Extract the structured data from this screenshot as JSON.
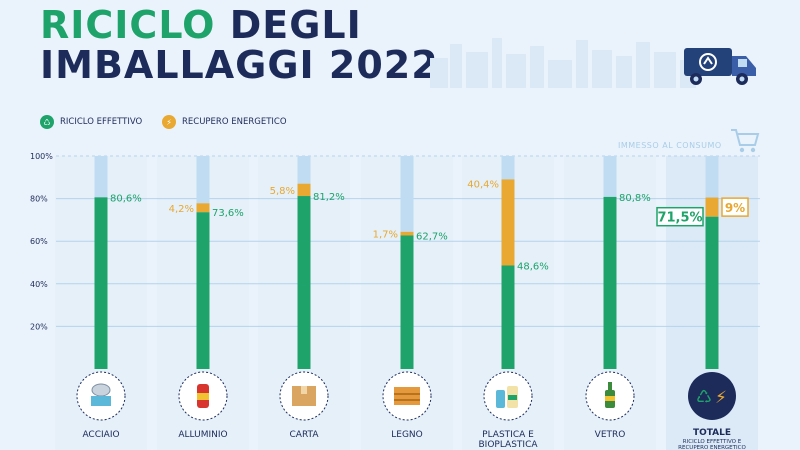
{
  "header": {
    "title_line1_a": "RICICLO",
    "title_line1_b": "DEGLI",
    "title_line2": "IMBALLAGGI 2022"
  },
  "legend": {
    "recycle_label": "RICICLO EFFETTIVO",
    "energy_label": "RECUPERO ENERGETICO"
  },
  "reference_label": "IMMESSO AL CONSUMO",
  "colors": {
    "recycle": "#1ea36a",
    "energy": "#e8a831",
    "remainder": "#bfdcf2",
    "navy": "#1d2b5b"
  },
  "chart_data": {
    "type": "bar",
    "stacked": true,
    "ylim": [
      0,
      100
    ],
    "yticks": [
      "20%",
      "40%",
      "60%",
      "80%",
      "100%"
    ],
    "categories": [
      "ACCIAIO",
      "ALLUMINIO",
      "CARTA",
      "LEGNO",
      "PLASTICA E BIOPLASTICA",
      "VETRO",
      "TOTALE"
    ],
    "category_subtitles": [
      "",
      "",
      "",
      "",
      "",
      "",
      "RICICLO EFFETTIVO E RECUPERO ENERGETICO"
    ],
    "series": [
      {
        "name": "RICICLO EFFETTIVO",
        "values": [
          80.6,
          73.6,
          81.2,
          62.7,
          48.6,
          80.8,
          71.5
        ],
        "labels": [
          "80,6%",
          "73,6%",
          "81,2%",
          "62,7%",
          "48,6%",
          "80,8%",
          "71,5%"
        ]
      },
      {
        "name": "RECUPERO ENERGETICO",
        "values": [
          null,
          4.2,
          5.8,
          1.7,
          40.4,
          null,
          9
        ],
        "labels": [
          "",
          "4,2%",
          "5,8%",
          "1,7%",
          "40,4%",
          "",
          "9%"
        ]
      }
    ],
    "grid": true,
    "legend_position": "top-left"
  },
  "icons": [
    "tin-can-icon",
    "soda-can-icon",
    "cardboard-box-icon",
    "wooden-crate-icon",
    "plastic-bottles-icon",
    "glass-bottle-icon",
    "recycle-energy-icon"
  ]
}
